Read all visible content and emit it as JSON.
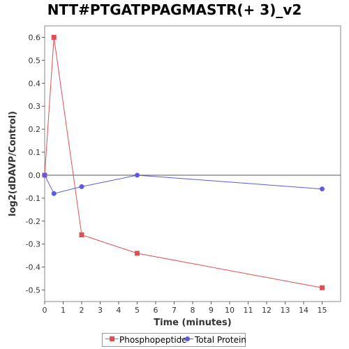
{
  "chart_data": {
    "type": "line",
    "title": "NTT#PTGATPPAGMASTR(+ 3)_v2",
    "xlabel": "Time (minutes)",
    "ylabel": "log2(dDAVP/Control)",
    "xlim": [
      0,
      16
    ],
    "ylim": [
      -0.55,
      0.65
    ],
    "x_ticks": [
      0,
      1,
      2,
      3,
      4,
      5,
      6,
      7,
      8,
      9,
      10,
      11,
      12,
      13,
      14,
      15
    ],
    "y_ticks": [
      0.6,
      0.5,
      0.4,
      0.3,
      0.2,
      0.1,
      0.0,
      -0.1,
      -0.2,
      -0.3,
      -0.4,
      -0.5
    ],
    "y_tick_labels": [
      "0.6",
      "0.5",
      "0.4",
      "0.3",
      "0.2",
      "0.1",
      "0.0",
      "-0.1",
      "-0.2",
      "-0.3",
      "-0.4",
      "-0.5"
    ],
    "grid": false,
    "zero_line": true,
    "legend_position": "bottom",
    "series": [
      {
        "name": "Phosphopeptide",
        "color": "#e05050",
        "marker": "square",
        "x": [
          0,
          0.5,
          2,
          5,
          15
        ],
        "y": [
          0.0,
          0.6,
          -0.26,
          -0.34,
          -0.49
        ]
      },
      {
        "name": "Total Protein",
        "color": "#5a5ae6",
        "marker": "circle",
        "x": [
          0,
          0.5,
          2,
          5,
          15
        ],
        "y": [
          0.0,
          -0.08,
          -0.05,
          0.0,
          -0.06
        ]
      }
    ]
  }
}
